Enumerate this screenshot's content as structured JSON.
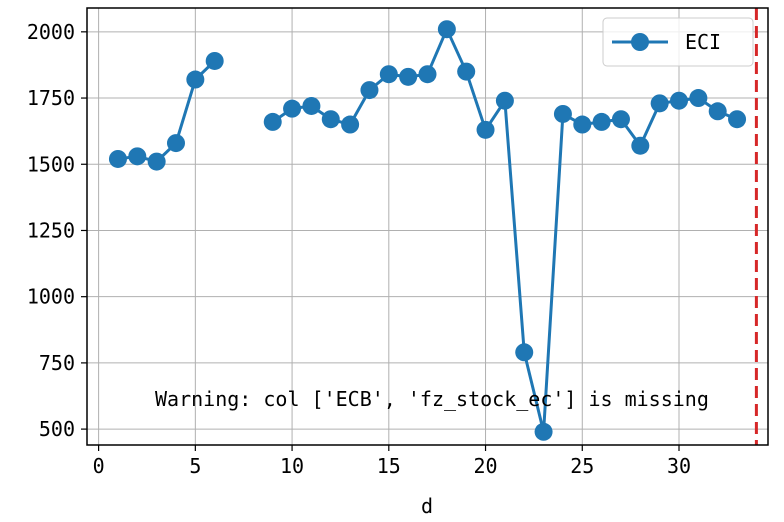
{
  "chart_data": {
    "type": "line",
    "title": "",
    "xlabel": "d",
    "ylabel": "",
    "xlim": [
      -0.6,
      34.6
    ],
    "ylim": [
      440,
      2090
    ],
    "xticks": [
      0,
      5,
      10,
      15,
      20,
      25,
      30
    ],
    "yticks": [
      500,
      750,
      1000,
      1250,
      1500,
      1750,
      2000
    ],
    "grid": true,
    "legend_position": "top-right",
    "series": [
      {
        "name": "ECI",
        "color": "#1f77b4",
        "marker": "circle",
        "x": [
          1,
          2,
          3,
          4,
          5,
          6,
          7,
          8,
          9,
          10,
          11,
          12,
          13,
          14,
          15,
          16,
          17,
          18,
          19,
          20,
          21,
          22,
          23,
          24,
          25,
          26,
          27,
          28,
          29,
          30,
          31,
          32,
          33
        ],
        "y": [
          1520,
          1530,
          1510,
          1580,
          1820,
          1890,
          null,
          null,
          1660,
          1710,
          1720,
          1670,
          1650,
          1780,
          1840,
          1830,
          1840,
          2010,
          1850,
          1630,
          1740,
          790,
          490,
          1690,
          1650,
          1660,
          1670,
          1570,
          1730,
          1740,
          1750,
          1700,
          1670
        ]
      }
    ],
    "vline": {
      "x": 34,
      "color": "#d62728",
      "style": "dashed"
    },
    "annotation": "Warning: col ['ECB', 'fz_stock_ec'] is missing"
  }
}
